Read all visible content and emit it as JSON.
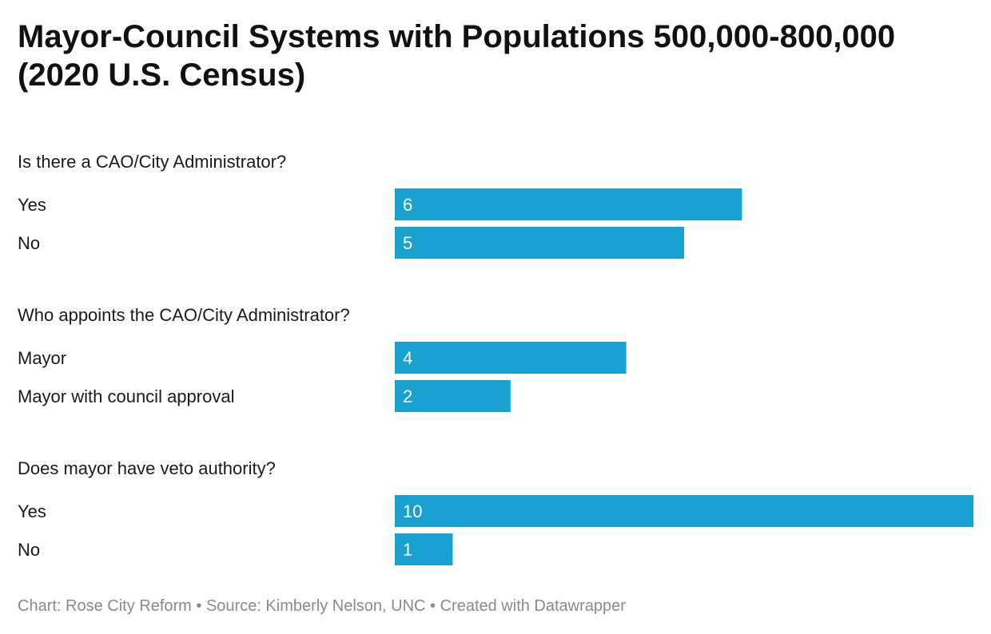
{
  "header": {
    "title": "Mayor-Council Systems with Populations 500,000-800,000 (2020 U.S. Census)"
  },
  "chart_data": {
    "type": "bar",
    "orientation": "horizontal",
    "title": "Mayor-Council Systems with Populations 500,000-800,000 (2020 U.S. Census)",
    "xlim": [
      0,
      10
    ],
    "bar_color": "#19a2cf",
    "label_color": "#ffffff",
    "groups": [
      {
        "question": "Is there a CAO/City Administrator?",
        "categories": [
          "Yes",
          "No"
        ],
        "values": [
          6,
          5
        ]
      },
      {
        "question": "Who appoints the CAO/City Administrator?",
        "categories": [
          "Mayor",
          "Mayor with council approval"
        ],
        "values": [
          4,
          2
        ]
      },
      {
        "question": "Does mayor have veto authority?",
        "categories": [
          "Yes",
          "No"
        ],
        "values": [
          10,
          1
        ]
      }
    ]
  },
  "footer": {
    "credit": "Chart: Rose City Reform • Source: Kimberly Nelson, UNC • Created with Datawrapper"
  }
}
